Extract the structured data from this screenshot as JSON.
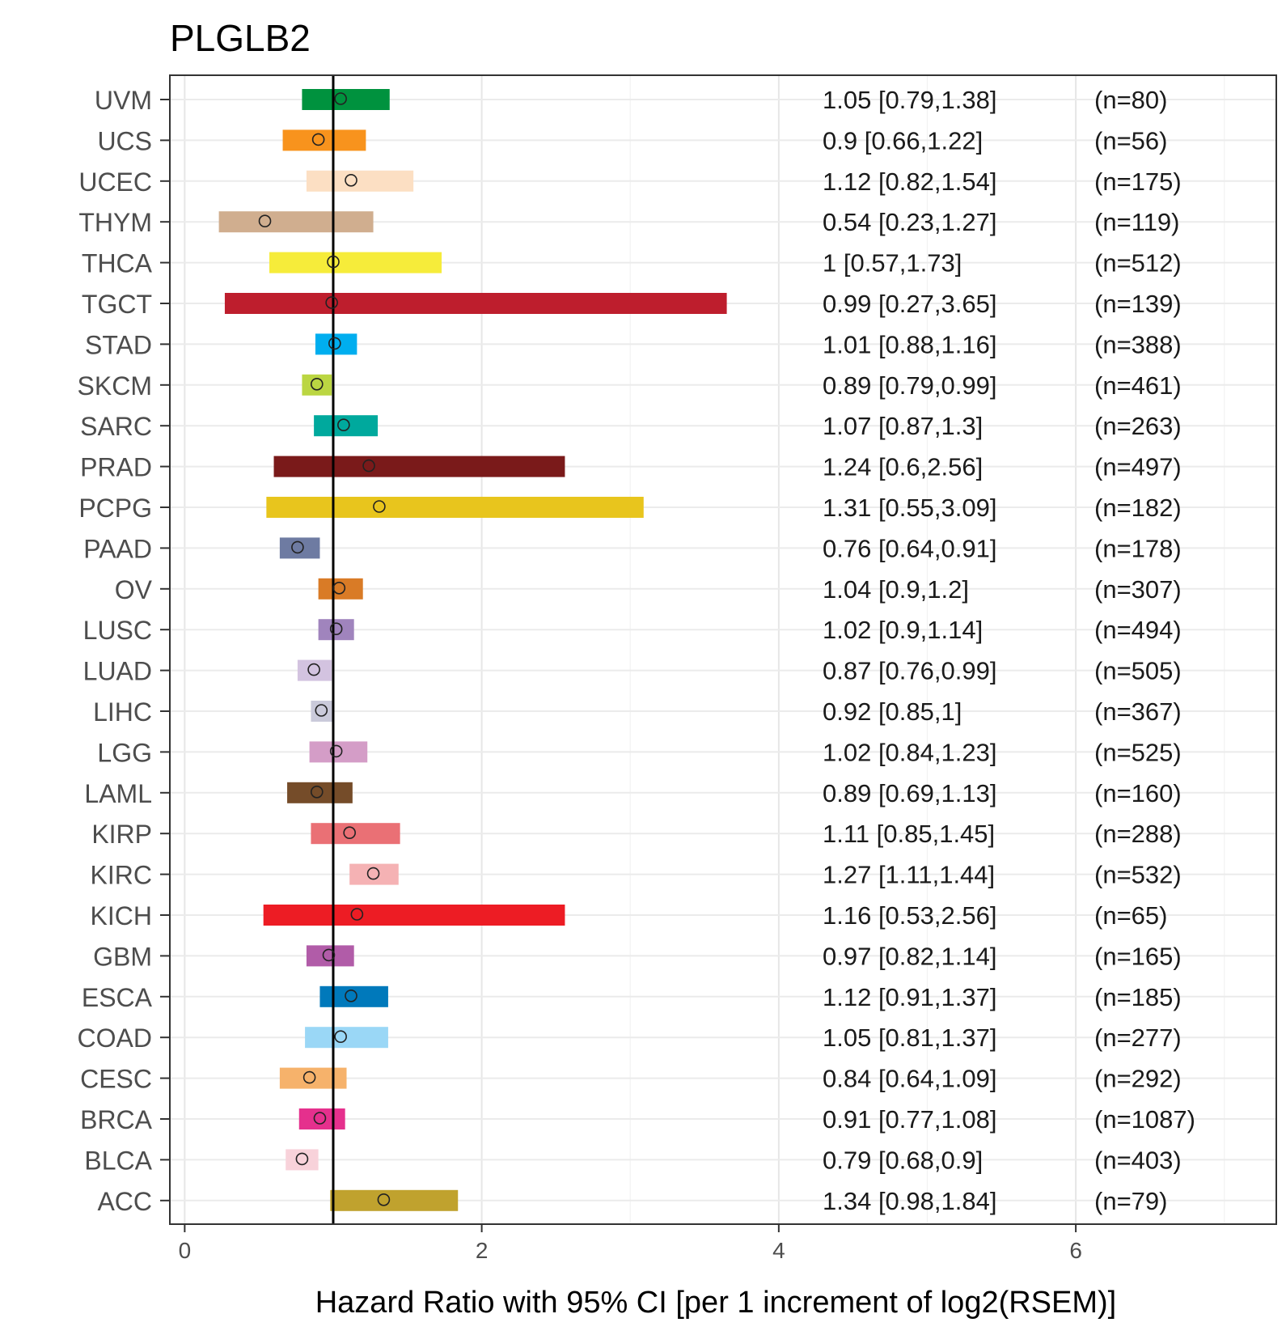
{
  "chart_data": {
    "type": "forest",
    "title": "PLGLB2",
    "xlabel": "Hazard Ratio with 95% CI [per 1 increment of log2(RSEM)]",
    "ylabel": "",
    "xlim": [
      -0.1,
      7.35
    ],
    "xticks": [
      0,
      2,
      4,
      6
    ],
    "reference_line": 1,
    "grid": true,
    "rows": [
      {
        "label": "UVM",
        "hr": 1.05,
        "lower": 0.79,
        "upper": 1.38,
        "ci_text": "1.05 [0.79,1.38]",
        "n_text": "(n=80)",
        "color": "#00923E"
      },
      {
        "label": "UCS",
        "hr": 0.9,
        "lower": 0.66,
        "upper": 1.22,
        "ci_text": "0.9 [0.66,1.22]",
        "n_text": "(n=56)",
        "color": "#F8931D"
      },
      {
        "label": "UCEC",
        "hr": 1.12,
        "lower": 0.82,
        "upper": 1.54,
        "ci_text": "1.12 [0.82,1.54]",
        "n_text": "(n=175)",
        "color": "#FCDFC3"
      },
      {
        "label": "THYM",
        "hr": 0.54,
        "lower": 0.23,
        "upper": 1.27,
        "ci_text": "0.54 [0.23,1.27]",
        "n_text": "(n=119)",
        "color": "#D0AE8F"
      },
      {
        "label": "THCA",
        "hr": 1,
        "lower": 0.57,
        "upper": 1.73,
        "ci_text": "1 [0.57,1.73]",
        "n_text": "(n=512)",
        "color": "#F6EC3A"
      },
      {
        "label": "TGCT",
        "hr": 0.99,
        "lower": 0.27,
        "upper": 3.65,
        "ci_text": "0.99 [0.27,3.65]",
        "n_text": "(n=139)",
        "color": "#BE1E2D"
      },
      {
        "label": "STAD",
        "hr": 1.01,
        "lower": 0.88,
        "upper": 1.16,
        "ci_text": "1.01 [0.88,1.16]",
        "n_text": "(n=388)",
        "color": "#00AEEF"
      },
      {
        "label": "SKCM",
        "hr": 0.89,
        "lower": 0.79,
        "upper": 0.99,
        "ci_text": "0.89 [0.79,0.99]",
        "n_text": "(n=461)",
        "color": "#BBD642"
      },
      {
        "label": "SARC",
        "hr": 1.07,
        "lower": 0.87,
        "upper": 1.3,
        "ci_text": "1.07 [0.87,1.3]",
        "n_text": "(n=263)",
        "color": "#00A99D"
      },
      {
        "label": "PRAD",
        "hr": 1.24,
        "lower": 0.6,
        "upper": 2.56,
        "ci_text": "1.24 [0.6,2.56]",
        "n_text": "(n=497)",
        "color": "#7A1A1A"
      },
      {
        "label": "PCPG",
        "hr": 1.31,
        "lower": 0.55,
        "upper": 3.09,
        "ci_text": "1.31 [0.55,3.09]",
        "n_text": "(n=182)",
        "color": "#E8C51D"
      },
      {
        "label": "PAAD",
        "hr": 0.76,
        "lower": 0.64,
        "upper": 0.91,
        "ci_text": "0.76 [0.64,0.91]",
        "n_text": "(n=178)",
        "color": "#6E7BA2"
      },
      {
        "label": "OV",
        "hr": 1.04,
        "lower": 0.9,
        "upper": 1.2,
        "ci_text": "1.04 [0.9,1.2]",
        "n_text": "(n=307)",
        "color": "#D97B26"
      },
      {
        "label": "LUSC",
        "hr": 1.02,
        "lower": 0.9,
        "upper": 1.14,
        "ci_text": "1.02 [0.9,1.14]",
        "n_text": "(n=494)",
        "color": "#A084BD"
      },
      {
        "label": "LUAD",
        "hr": 0.87,
        "lower": 0.76,
        "upper": 0.99,
        "ci_text": "0.87 [0.76,0.99]",
        "n_text": "(n=505)",
        "color": "#D3C3E0"
      },
      {
        "label": "LIHC",
        "hr": 0.92,
        "lower": 0.85,
        "upper": 1,
        "ci_text": "0.92 [0.85,1]",
        "n_text": "(n=367)",
        "color": "#CACADA"
      },
      {
        "label": "LGG",
        "hr": 1.02,
        "lower": 0.84,
        "upper": 1.23,
        "ci_text": "1.02 [0.84,1.23]",
        "n_text": "(n=525)",
        "color": "#D49DC7"
      },
      {
        "label": "LAML",
        "hr": 0.89,
        "lower": 0.69,
        "upper": 1.13,
        "ci_text": "0.89 [0.69,1.13]",
        "n_text": "(n=160)",
        "color": "#754C29"
      },
      {
        "label": "KIRP",
        "hr": 1.11,
        "lower": 0.85,
        "upper": 1.45,
        "ci_text": "1.11 [0.85,1.45]",
        "n_text": "(n=288)",
        "color": "#EA7075"
      },
      {
        "label": "KIRC",
        "hr": 1.27,
        "lower": 1.11,
        "upper": 1.44,
        "ci_text": "1.27 [1.11,1.44]",
        "n_text": "(n=532)",
        "color": "#F5B2B4"
      },
      {
        "label": "KICH",
        "hr": 1.16,
        "lower": 0.53,
        "upper": 2.56,
        "ci_text": "1.16 [0.53,2.56]",
        "n_text": "(n=65)",
        "color": "#ED1C24"
      },
      {
        "label": "GBM",
        "hr": 0.97,
        "lower": 0.82,
        "upper": 1.14,
        "ci_text": "0.97 [0.82,1.14]",
        "n_text": "(n=165)",
        "color": "#B15CA8"
      },
      {
        "label": "ESCA",
        "hr": 1.12,
        "lower": 0.91,
        "upper": 1.37,
        "ci_text": "1.12 [0.91,1.37]",
        "n_text": "(n=185)",
        "color": "#0079BB"
      },
      {
        "label": "COAD",
        "hr": 1.05,
        "lower": 0.81,
        "upper": 1.37,
        "ci_text": "1.05 [0.81,1.37]",
        "n_text": "(n=277)",
        "color": "#9AD7F6"
      },
      {
        "label": "CESC",
        "hr": 0.84,
        "lower": 0.64,
        "upper": 1.09,
        "ci_text": "0.84 [0.64,1.09]",
        "n_text": "(n=292)",
        "color": "#F6B26B"
      },
      {
        "label": "BRCA",
        "hr": 0.91,
        "lower": 0.77,
        "upper": 1.08,
        "ci_text": "0.91 [0.77,1.08]",
        "n_text": "(n=1087)",
        "color": "#E5308D"
      },
      {
        "label": "BLCA",
        "hr": 0.79,
        "lower": 0.68,
        "upper": 0.9,
        "ci_text": "0.79 [0.68,0.9]",
        "n_text": "(n=403)",
        "color": "#F8D2DA"
      },
      {
        "label": "ACC",
        "hr": 1.34,
        "lower": 0.98,
        "upper": 1.84,
        "ci_text": "1.34 [0.98,1.84]",
        "n_text": "(n=79)",
        "color": "#C0A22E"
      }
    ]
  }
}
